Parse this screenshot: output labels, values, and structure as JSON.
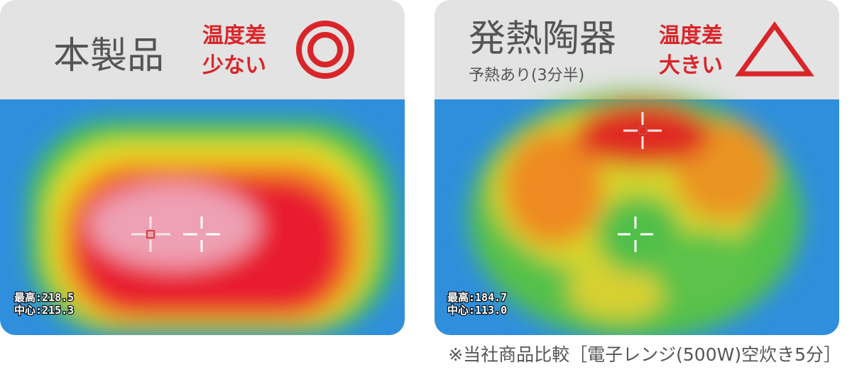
{
  "panels": [
    {
      "title": "本製品",
      "badge": [
        "温度差",
        "少ない"
      ],
      "readouts": [
        "最高:218.5",
        "中心:215.3"
      ]
    },
    {
      "title": "発熱陶器",
      "subtitle": "予熱あり(3分半)",
      "badge": [
        "温度差",
        "大きい"
      ],
      "readouts": [
        "最高:184.7",
        "中心:113.0"
      ]
    }
  ],
  "footnote": "※当社商品比較［電子レンジ(500W)空炊き5分］"
}
